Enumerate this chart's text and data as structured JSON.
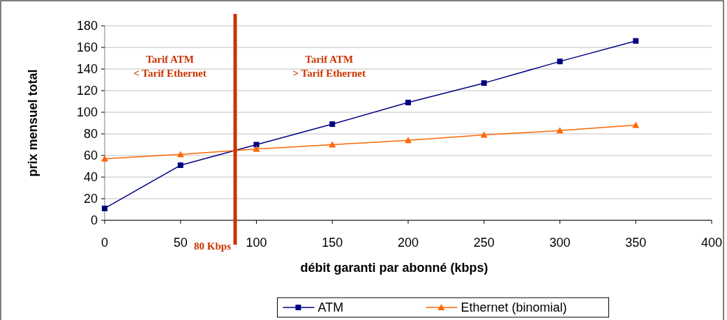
{
  "chart_data": {
    "type": "line",
    "xlabel": "débit garanti par abonné (kbps)",
    "ylabel": "prix mensuel total",
    "xlim": [
      0,
      400
    ],
    "xticks": [
      0,
      50,
      100,
      150,
      200,
      250,
      300,
      350,
      400
    ],
    "ylim": [
      0,
      180
    ],
    "yticks": [
      0,
      20,
      40,
      60,
      80,
      100,
      120,
      140,
      160,
      180
    ],
    "grid": "y",
    "legend": "bottom",
    "series": [
      {
        "name": "ATM",
        "color": "#000080",
        "marker": "square",
        "x": [
          0,
          50,
          100,
          150,
          200,
          250,
          300,
          350
        ],
        "values": [
          11,
          51,
          70,
          89,
          109,
          127,
          147,
          166
        ]
      },
      {
        "name": "Ethernet (binomial)",
        "color": "#ff6600",
        "marker": "triangle",
        "x": [
          0,
          50,
          100,
          150,
          200,
          250,
          300,
          350
        ],
        "values": [
          57,
          61,
          66,
          70,
          74,
          79,
          83,
          88
        ]
      }
    ],
    "ref_lines": [
      {
        "axis": "x",
        "value": 86,
        "label": "80 Kbps",
        "color": "#cc3300"
      }
    ],
    "annotations": [
      "Tarif ATM\n< Tarif Ethernet",
      "Tarif ATM\n> Tarif Ethernet"
    ]
  }
}
